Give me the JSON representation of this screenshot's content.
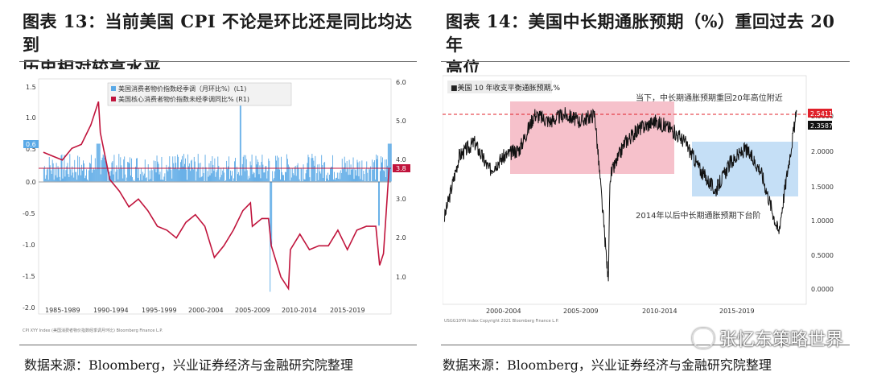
{
  "left": {
    "title_line1": "图表 13：当前美国 CPI 不论是环比还是同比均达到",
    "title_line2": "历史相对较高水平",
    "source": "数据来源：Bloomberg，兴业证券经济与金融研究院整理",
    "legend_l1": "美国消费者物价指数经季调（月环比%）(L1)",
    "legend_r1": "美国核心消费者物价指数未经季调同比% (R1)",
    "left_ticks": [
      "1.5",
      "1.0",
      "0.5",
      "0.0",
      "-0.5",
      "-1.0",
      "-1.5",
      "-2.0"
    ],
    "right_ticks": [
      "6.0",
      "5.0",
      "4.0",
      "3.0",
      "2.0",
      "1.0"
    ],
    "x_ticks": [
      "1985-1989",
      "1990-1994",
      "1995-1999",
      "2000-2004",
      "2005-2009",
      "2010-2014",
      "2015-2019"
    ],
    "tag_left": "0.6",
    "tag_right": "3.8",
    "footnote": "CPI XYY Index (美国消费者物价指数经季调月环比)  Bloomberg Finance L.P."
  },
  "right": {
    "title_line1": "图表 14：美国中长期通胀预期（%）重回过去 20 年",
    "title_line2": "高位",
    "source": "数据来源：Bloomberg，兴业证券经济与金融研究院整理",
    "legend": "■美国 10 年收支平衡通胀预期,%",
    "annot_top": "当下，中长期通胀预期重回20年高位附近",
    "annot_bottom": "2014年以后中长期通胀预期下台阶",
    "right_ticks": [
      "2.5000",
      "2.0000",
      "1.5000",
      "1.0000",
      "0.5000",
      "0.0000"
    ],
    "x_ticks": [
      "2000-2004",
      "2005-2009",
      "2010-2014",
      "2015-2019"
    ],
    "tag_upper": "2.5411",
    "tag_lower": "2.3587",
    "footnote": "USGG10YR Index  Copyright 2021 Bloomberg Finance L.P."
  },
  "watermark": "张忆东策略世界",
  "colors": {
    "bar": "#5aa9e6",
    "line": "#c0143c",
    "pink": "#f4b6c2",
    "blue": "#bfdcf5",
    "dash": "#e0202a"
  },
  "chart_data": [
    {
      "type": "bar+line",
      "series": [
        {
          "name": "美国消费者物价指数经季调（月环比%）(L1)",
          "axis": "left"
        },
        {
          "name": "美国核心消费者物价指数未经季调同比% (R1)",
          "axis": "right",
          "x": [
            1985,
            1986,
            1987,
            1988,
            1989,
            1990,
            1990.8,
            1991,
            1992,
            1993,
            1994,
            1995,
            1996,
            1997,
            1998,
            1999,
            2000,
            2001,
            2002,
            2003,
            2004,
            2005,
            2006,
            2006.8,
            2007,
            2008,
            2008.7,
            2009,
            2010,
            2010.8,
            2011,
            2012,
            2013,
            2014,
            2015,
            2016,
            2017,
            2018,
            2019,
            2020,
            2020.4,
            2020.8,
            2021.4
          ],
          "y": [
            4.2,
            4.1,
            4.0,
            4.3,
            4.4,
            4.9,
            5.5,
            4.7,
            3.5,
            3.2,
            2.8,
            3.0,
            2.7,
            2.3,
            2.2,
            2.0,
            2.4,
            2.6,
            2.3,
            1.5,
            1.8,
            2.2,
            2.7,
            2.9,
            2.3,
            2.5,
            2.5,
            1.8,
            1.0,
            0.7,
            1.7,
            2.1,
            1.7,
            1.8,
            1.8,
            2.2,
            1.7,
            2.2,
            2.3,
            2.3,
            1.3,
            1.6,
            3.8
          ]
        }
      ],
      "ylim_left": [
        -2.0,
        1.5
      ],
      "ylim_right": [
        0.5,
        6.0
      ],
      "last_left": 0.6,
      "last_right": 3.8
    },
    {
      "type": "line",
      "series": [
        {
          "name": "美国 10 年收支平衡通胀预期,%",
          "x": [
            1998,
            1999,
            2000,
            2001,
            2002,
            2003,
            2004,
            2005,
            2006,
            2007,
            2008,
            2008.9,
            2009,
            2010,
            2011,
            2012,
            2013,
            2014,
            2015,
            2016,
            2016.5,
            2017,
            2018,
            2019,
            2020.2,
            2020.8,
            2021.4
          ],
          "y": [
            1.0,
            1.9,
            2.1,
            1.7,
            1.9,
            2.0,
            2.5,
            2.4,
            2.5,
            2.4,
            2.5,
            0.1,
            1.6,
            2.1,
            2.3,
            2.4,
            2.3,
            2.1,
            1.7,
            1.4,
            1.6,
            1.8,
            2.0,
            1.7,
            0.8,
            1.7,
            2.54
          ]
        }
      ],
      "ylim": [
        0.0,
        2.8
      ],
      "last": 2.5411,
      "prev_tag": 2.3587
    }
  ]
}
